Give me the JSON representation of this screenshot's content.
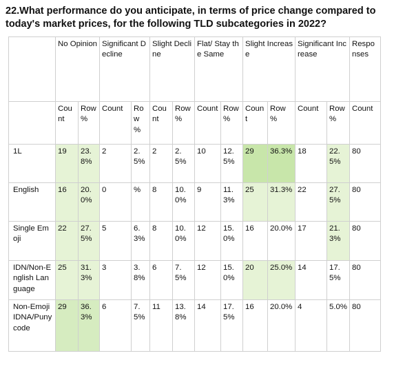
{
  "title": "22.What performance do you anticipate, in terms of price change compared to today's market prices, for the following TLD subcategories in 2022?",
  "groups": [
    "No Opinion",
    "Significant Decline",
    "Slight Decline",
    "Flat/ Stay the Same",
    "Slight Increase",
    "Significant Increase",
    "Responses"
  ],
  "subheaders": [
    "Count",
    "Row %",
    "Count",
    "Row %",
    "Count",
    "Row %",
    "Count",
    "Row %",
    "Count",
    "Row %",
    "Count",
    "Row %",
    "Count"
  ],
  "rows": [
    {
      "label": "1L",
      "cells": [
        "19",
        "23.8%",
        "2",
        "2.5%",
        "2",
        "2.5%",
        "10",
        "12.5%",
        "29",
        "36.3%",
        "18",
        "22.5%",
        "80"
      ]
    },
    {
      "label": "English",
      "cells": [
        "16",
        "20.0%",
        "0",
        "%",
        "8",
        "10.0%",
        "9",
        "11.3%",
        "25",
        "31.3%",
        "22",
        "27.5%",
        "80"
      ]
    },
    {
      "label": "Single Emoji",
      "cells": [
        "22",
        "27.5%",
        "5",
        "6.3%",
        "8",
        "10.0%",
        "12",
        "15.0%",
        "16",
        "20.0%",
        "17",
        "21.3%",
        "80"
      ]
    },
    {
      "label": "IDN/Non-English Language",
      "cells": [
        "25",
        "31.3%",
        "3",
        "3.8%",
        "6",
        "7.5%",
        "12",
        "15.0%",
        "20",
        "25.0%",
        "14",
        "17.5%",
        "80"
      ]
    },
    {
      "label": "Non-Emoji IDNA/Punycode",
      "cells": [
        "29",
        "36.3%",
        "6",
        "7.5%",
        "11",
        "13.8%",
        "14",
        "17.5%",
        "16",
        "20.0%",
        "4",
        "5.0%",
        "80"
      ]
    }
  ],
  "colors": {
    "light": "#e6f3d6",
    "medium": "#d6ecc0",
    "dark": "#c8e6aa",
    "border": "#cfcfcf"
  }
}
